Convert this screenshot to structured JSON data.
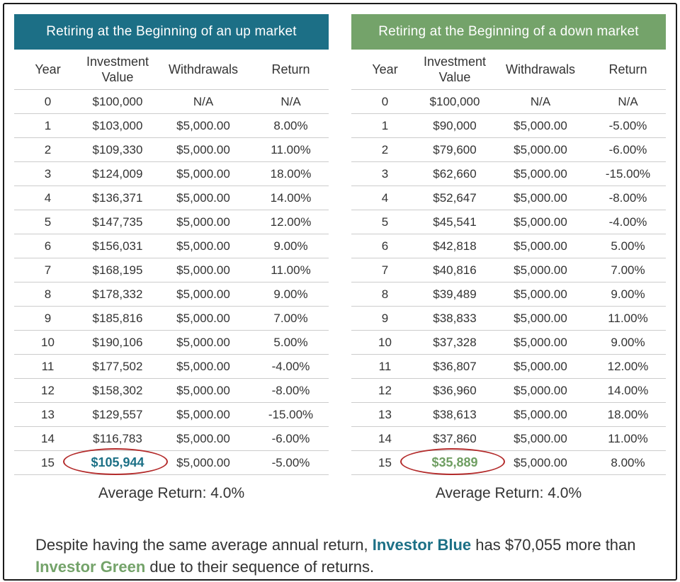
{
  "headers": {
    "year": "Year",
    "investment_line1": "Investment",
    "investment_line2": "Value",
    "withdrawals": "Withdrawals",
    "return": "Return"
  },
  "tables": [
    {
      "title": "Retiring at the Beginning of an up market",
      "accent_color": "#1c6f86",
      "rows": [
        {
          "year": "0",
          "value": "$100,000",
          "withdrawal": "N/A",
          "return": "N/A"
        },
        {
          "year": "1",
          "value": "$103,000",
          "withdrawal": "$5,000.00",
          "return": "8.00%"
        },
        {
          "year": "2",
          "value": "$109,330",
          "withdrawal": "$5,000.00",
          "return": "11.00%"
        },
        {
          "year": "3",
          "value": "$124,009",
          "withdrawal": "$5,000.00",
          "return": "18.00%"
        },
        {
          "year": "4",
          "value": "$136,371",
          "withdrawal": "$5,000.00",
          "return": "14.00%"
        },
        {
          "year": "5",
          "value": "$147,735",
          "withdrawal": "$5,000.00",
          "return": "12.00%"
        },
        {
          "year": "6",
          "value": "$156,031",
          "withdrawal": "$5,000.00",
          "return": "9.00%"
        },
        {
          "year": "7",
          "value": "$168,195",
          "withdrawal": "$5,000.00",
          "return": "11.00%"
        },
        {
          "year": "8",
          "value": "$178,332",
          "withdrawal": "$5,000.00",
          "return": "9.00%"
        },
        {
          "year": "9",
          "value": "$185,816",
          "withdrawal": "$5,000.00",
          "return": "7.00%"
        },
        {
          "year": "10",
          "value": "$190,106",
          "withdrawal": "$5,000.00",
          "return": "5.00%"
        },
        {
          "year": "11",
          "value": "$177,502",
          "withdrawal": "$5,000.00",
          "return": "-4.00%"
        },
        {
          "year": "12",
          "value": "$158,302",
          "withdrawal": "$5,000.00",
          "return": "-8.00%"
        },
        {
          "year": "13",
          "value": "$129,557",
          "withdrawal": "$5,000.00",
          "return": "-15.00%"
        },
        {
          "year": "14",
          "value": "$116,783",
          "withdrawal": "$5,000.00",
          "return": "-6.00%"
        },
        {
          "year": "15",
          "value": "$105,944",
          "withdrawal": "$5,000.00",
          "return": "-5.00%",
          "highlight": true
        }
      ],
      "average": "Average Return: 4.0%"
    },
    {
      "title": "Retiring at the Beginning of  a down market",
      "accent_color": "#74a36a",
      "rows": [
        {
          "year": "0",
          "value": "$100,000",
          "withdrawal": "N/A",
          "return": "N/A"
        },
        {
          "year": "1",
          "value": "$90,000",
          "withdrawal": "$5,000.00",
          "return": "-5.00%"
        },
        {
          "year": "2",
          "value": "$79,600",
          "withdrawal": "$5,000.00",
          "return": "-6.00%"
        },
        {
          "year": "3",
          "value": "$62,660",
          "withdrawal": "$5,000.00",
          "return": "-15.00%"
        },
        {
          "year": "4",
          "value": "$52,647",
          "withdrawal": "$5,000.00",
          "return": "-8.00%"
        },
        {
          "year": "5",
          "value": "$45,541",
          "withdrawal": "$5,000.00",
          "return": "-4.00%"
        },
        {
          "year": "6",
          "value": "$42,818",
          "withdrawal": "$5,000.00",
          "return": "5.00%"
        },
        {
          "year": "7",
          "value": "$40,816",
          "withdrawal": "$5,000.00",
          "return": "7.00%"
        },
        {
          "year": "8",
          "value": "$39,489",
          "withdrawal": "$5,000.00",
          "return": "9.00%"
        },
        {
          "year": "9",
          "value": "$38,833",
          "withdrawal": "$5,000.00",
          "return": "11.00%"
        },
        {
          "year": "10",
          "value": "$37,328",
          "withdrawal": "$5,000.00",
          "return": "9.00%"
        },
        {
          "year": "11",
          "value": "$36,807",
          "withdrawal": "$5,000.00",
          "return": "12.00%"
        },
        {
          "year": "12",
          "value": "$36,960",
          "withdrawal": "$5,000.00",
          "return": "14.00%"
        },
        {
          "year": "13",
          "value": "$38,613",
          "withdrawal": "$5,000.00",
          "return": "18.00%"
        },
        {
          "year": "14",
          "value": "$37,860",
          "withdrawal": "$5,000.00",
          "return": "11.00%"
        },
        {
          "year": "15",
          "value": "$35,889",
          "withdrawal": "$5,000.00",
          "return": "8.00%",
          "highlight": true
        }
      ],
      "average": "Average Return: 4.0%"
    }
  ],
  "footer": {
    "part1": "Despite having the same average annual return, ",
    "investor_blue": "Investor Blue",
    "part2": " has $70,055 more than ",
    "investor_green": "Investor Green",
    "part3": " due to their sequence of returns."
  }
}
